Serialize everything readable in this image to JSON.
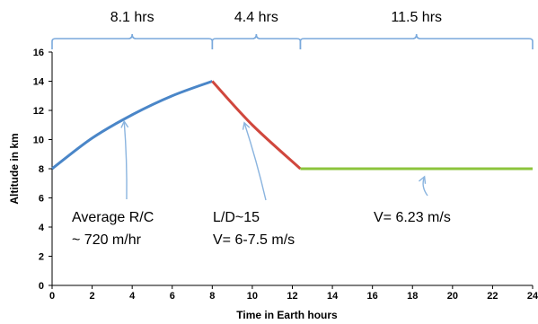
{
  "chart_data": {
    "type": "line",
    "xlabel": "Time in Earth hours",
    "ylabel": "Altitude in km",
    "xlim": [
      0,
      24
    ],
    "ylim": [
      0,
      16
    ],
    "x_ticks": [
      "0",
      "2",
      "4",
      "6",
      "8",
      "10",
      "12",
      "14",
      "16",
      "18",
      "20",
      "22",
      "24"
    ],
    "y_ticks": [
      "0",
      "2",
      "4",
      "6",
      "8",
      "10",
      "12",
      "14",
      "16"
    ],
    "grid": false,
    "series": [
      {
        "color": "#4a86c8",
        "x": [
          0,
          2,
          4,
          6,
          8
        ],
        "y": [
          8,
          10.1,
          11.7,
          13.0,
          14.0
        ]
      },
      {
        "color": "#d0473d",
        "x": [
          8,
          10,
          12.4
        ],
        "y": [
          14.0,
          11.0,
          8.0
        ]
      },
      {
        "color": "#8cc43c",
        "x": [
          12.4,
          24
        ],
        "y": [
          8,
          8
        ]
      }
    ],
    "segments": [
      {
        "label": "8.1 hrs"
      },
      {
        "label": "4.4 hrs"
      },
      {
        "label": "11.5 hrs"
      }
    ],
    "annotations": [
      {
        "lines": [
          "Average R/C",
          "~ 720 m/hr"
        ],
        "point_x": 3.6,
        "point_y": 11.5
      },
      {
        "lines": [
          "L/D~15",
          "V= 6-7.5 m/s"
        ],
        "point_x": 9.6,
        "point_y": 11.4
      },
      {
        "lines": [
          "V= 6.23 m/s"
        ],
        "point_x": 18.6,
        "point_y": 7.7
      }
    ],
    "bracket_color": "#7aa9dc",
    "arrow_color": "#8ab4df"
  }
}
